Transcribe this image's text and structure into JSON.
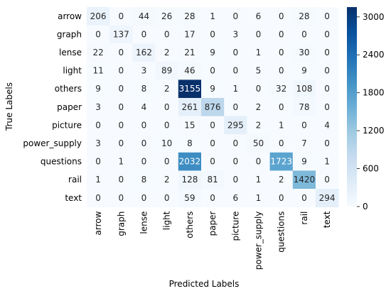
{
  "chart_data": {
    "type": "heatmap",
    "xlabel": "Predicted Labels",
    "ylabel": "True Labels",
    "categories_x": [
      "arrow",
      "graph",
      "lense",
      "light",
      "others",
      "paper",
      "picture",
      "power_supply",
      "questions",
      "rail",
      "text"
    ],
    "categories_y": [
      "arrow",
      "graph",
      "lense",
      "light",
      "others",
      "paper",
      "picture",
      "power_supply",
      "questions",
      "rail",
      "text"
    ],
    "matrix": [
      [
        206,
        0,
        44,
        26,
        28,
        1,
        0,
        6,
        0,
        28,
        0
      ],
      [
        0,
        137,
        0,
        0,
        17,
        0,
        3,
        0,
        0,
        0,
        0
      ],
      [
        22,
        0,
        162,
        2,
        21,
        9,
        0,
        1,
        0,
        30,
        0
      ],
      [
        11,
        0,
        3,
        89,
        46,
        0,
        0,
        5,
        0,
        9,
        0
      ],
      [
        9,
        0,
        8,
        2,
        3155,
        9,
        1,
        0,
        32,
        108,
        0
      ],
      [
        3,
        0,
        4,
        0,
        261,
        876,
        0,
        2,
        0,
        78,
        0
      ],
      [
        0,
        0,
        0,
        0,
        15,
        0,
        295,
        2,
        1,
        0,
        4
      ],
      [
        3,
        0,
        0,
        10,
        8,
        0,
        0,
        50,
        0,
        7,
        0
      ],
      [
        0,
        1,
        0,
        0,
        2032,
        0,
        0,
        0,
        1723,
        9,
        1
      ],
      [
        1,
        0,
        8,
        2,
        128,
        81,
        0,
        1,
        2,
        1420,
        0
      ],
      [
        0,
        0,
        0,
        0,
        59,
        0,
        6,
        1,
        0,
        0,
        294
      ]
    ],
    "colorbar": {
      "ticks": [
        0,
        600,
        1200,
        1800,
        2400,
        3000
      ],
      "range": [
        0,
        3155
      ],
      "colormap": "Blues",
      "color_low": "#f7fbff",
      "color_high": "#08306b"
    },
    "grid": false
  }
}
